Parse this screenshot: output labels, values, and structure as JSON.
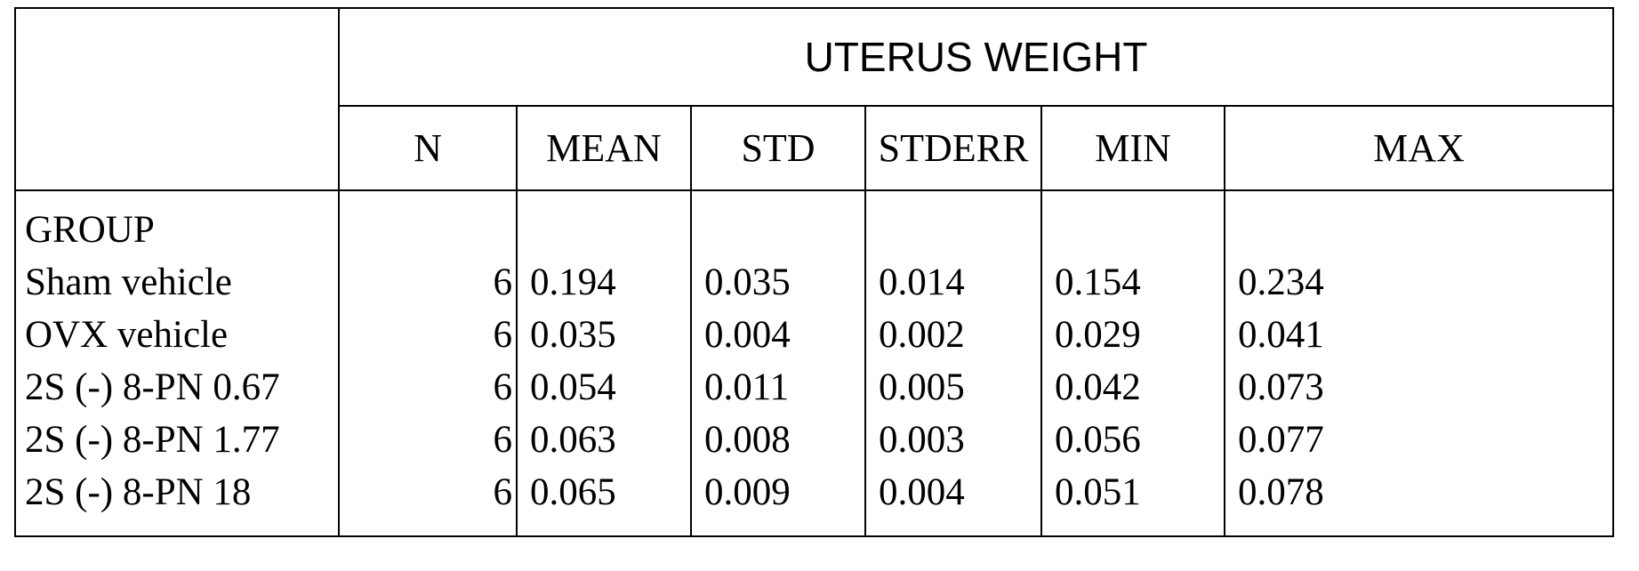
{
  "title": "UTERUS WEIGHT",
  "columns": [
    "N",
    "MEAN",
    "STD",
    "STDERR",
    "MIN",
    "MAX"
  ],
  "group_header": "GROUP",
  "rows": [
    {
      "group": "Sham vehicle",
      "n": "6",
      "mean": "0.194",
      "std": "0.035",
      "stderr": "0.014",
      "min": "0.154",
      "max": "0.234"
    },
    {
      "group": "OVX vehicle",
      "n": "6",
      "mean": "0.035",
      "std": "0.004",
      "stderr": "0.002",
      "min": "0.029",
      "max": "0.041"
    },
    {
      "group": "2S (-) 8-PN 0.67",
      "n": "6",
      "mean": "0.054",
      "std": "0.011",
      "stderr": "0.005",
      "min": "0.042",
      "max": "0.073"
    },
    {
      "group": "2S (-) 8-PN 1.77",
      "n": "6",
      "mean": "0.063",
      "std": "0.008",
      "stderr": "0.003",
      "min": "0.056",
      "max": "0.077"
    },
    {
      "group": "2S (-) 8-PN 18",
      "n": "6",
      "mean": "0.065",
      "std": "0.009",
      "stderr": "0.004",
      "min": "0.051",
      "max": "0.078"
    }
  ]
}
